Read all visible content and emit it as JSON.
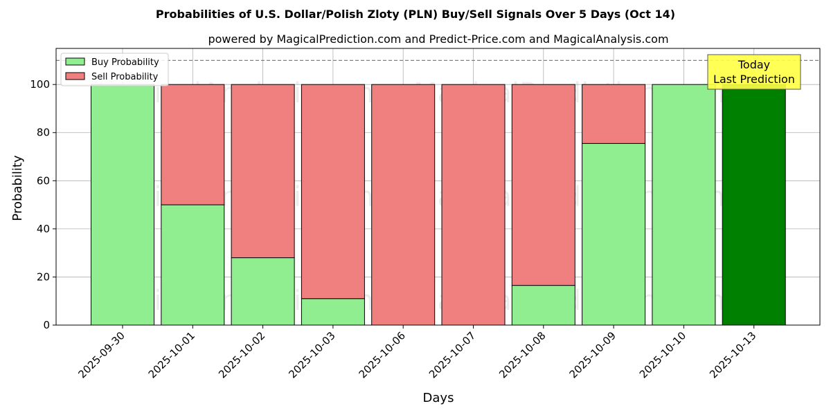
{
  "chart_data": {
    "type": "bar",
    "stacked": true,
    "title": "Probabilities of U.S. Dollar/Polish Zloty (PLN) Buy/Sell Signals Over 5 Days (Oct 14)",
    "subtitle": "powered by MagicalPrediction.com and Predict-Price.com and MagicalAnalysis.com",
    "xlabel": "Days",
    "ylabel": "Probability",
    "ylim": [
      0,
      115
    ],
    "yticks": [
      0,
      20,
      40,
      60,
      80,
      100
    ],
    "grid": true,
    "legend_position": "top-left",
    "reference_line": 110,
    "categories": [
      "2025-09-30",
      "2025-10-01",
      "2025-10-02",
      "2025-10-03",
      "2025-10-06",
      "2025-10-07",
      "2025-10-08",
      "2025-10-09",
      "2025-10-10",
      "2025-10-13"
    ],
    "series": [
      {
        "name": "Buy Probability",
        "color": "#90ee90",
        "values": [
          100,
          50,
          28,
          11,
          0,
          0,
          16.5,
          75.5,
          100,
          100
        ]
      },
      {
        "name": "Sell Probability",
        "color": "#f08080",
        "values": [
          0,
          50,
          72,
          89,
          100,
          100,
          83.5,
          24.5,
          0,
          0
        ]
      }
    ],
    "highlight": {
      "category": "2025-10-13",
      "color": "#008000"
    },
    "annotation": {
      "lines": [
        "Today",
        "Last Prediction"
      ],
      "background": "#ffff44"
    },
    "watermark": [
      "MagicalAnalysis.com",
      "MagicalPrediction.com"
    ]
  }
}
